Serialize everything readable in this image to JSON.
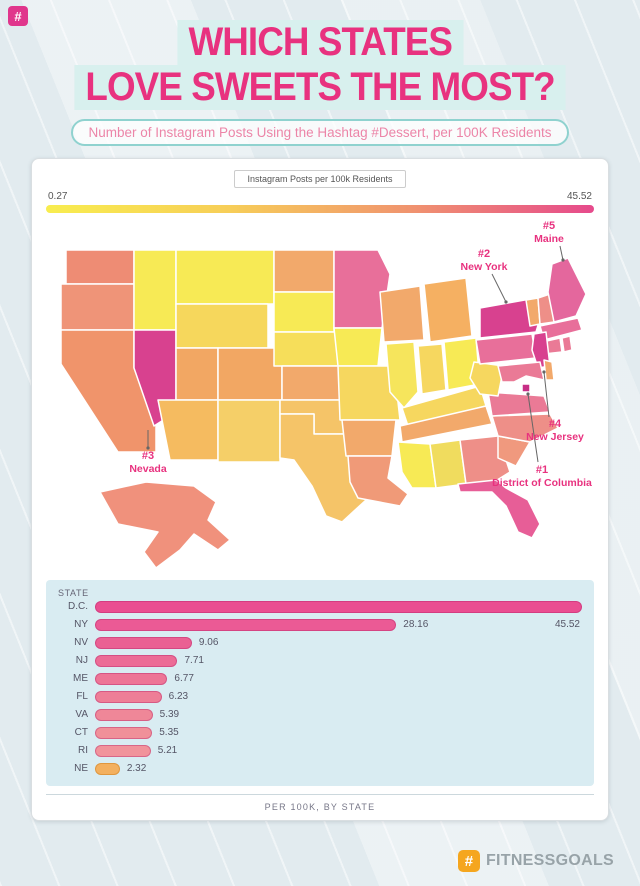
{
  "header": {
    "title_line1": "WHICH STATES",
    "title_line2": "LOVE SWEETS THE MOST?",
    "subtitle": "Number of Instagram Posts Using the Hashtag #Dessert, per 100K Residents",
    "title_color": "#E8327F",
    "highlight_color": "#D8F0EE"
  },
  "legend": {
    "title": "Instagram Posts per 100k Residents",
    "min_label": "0.27",
    "max_label": "45.52",
    "gradient_stops": [
      "#F8ED4F",
      "#F7CE58",
      "#F0936F",
      "#E64A8C"
    ]
  },
  "map": {
    "annotations": [
      {
        "rank": "#1",
        "name": "District of Columbia",
        "state_id": "DC"
      },
      {
        "rank": "#2",
        "name": "New York",
        "state_id": "NY"
      },
      {
        "rank": "#3",
        "name": "Nevada",
        "state_id": "NV"
      },
      {
        "rank": "#4",
        "name": "New Jersey",
        "state_id": "NJ"
      },
      {
        "rank": "#5",
        "name": "Maine",
        "state_id": "ME"
      }
    ],
    "state_fills": {
      "WA": "#EE8C74",
      "OR": "#EF9478",
      "CA": "#F0946B",
      "NV": "#D8418F",
      "ID": "#F7EA55",
      "MT": "#F7EA55",
      "WY": "#F6D75C",
      "UT": "#F2A763",
      "CO": "#F2A763",
      "AZ": "#F5BB60",
      "NM": "#F5CF68",
      "ND": "#F2A96B",
      "SD": "#F7EA55",
      "NE": "#F6DE5A",
      "KS": "#F2A96B",
      "OK": "#F5C468",
      "TX": "#F5C468",
      "MN": "#E86F9A",
      "IA": "#F7EA55",
      "MO": "#F6D75F",
      "AR": "#F2A96B",
      "LA": "#F09A78",
      "WI": "#F2A96B",
      "IL": "#F6E55C",
      "MI": "#F5B062",
      "IN": "#F6D75F",
      "OH": "#F7EA55",
      "KY": "#F6D75F",
      "TN": "#F2A96B",
      "MS": "#F7EA55",
      "AL": "#F0DC5E",
      "GA": "#EE8F88",
      "FL": "#E75E97",
      "SC": "#F0997E",
      "NC": "#EE8F88",
      "VA": "#EA7A96",
      "WV": "#F6D75F",
      "PA": "#E86F9A",
      "NY": "#D8418F",
      "LI": "#D8418F",
      "VT": "#F2A96B",
      "NH": "#EE8F88",
      "ME": "#E4679D",
      "MA": "#E86F9A",
      "CT": "#EA7A96",
      "RI": "#EA7A96",
      "NJ": "#D8418F",
      "DE": "#F2A96B",
      "MD": "#EA7A96",
      "DC": "#C72E86",
      "AK": "#F0917C"
    }
  },
  "chart_data": {
    "type": "bar",
    "orientation": "horizontal",
    "column_header": "STATE",
    "categories": [
      "D.C.",
      "NY",
      "NV",
      "NJ",
      "ME",
      "FL",
      "VA",
      "CT",
      "RI",
      "NE"
    ],
    "values": [
      45.52,
      28.16,
      9.06,
      7.71,
      6.77,
      6.23,
      5.39,
      5.35,
      5.21,
      2.32
    ],
    "bar_colors": [
      "#EA4E91",
      "#EB5A95",
      "#EA6093",
      "#EC6C96",
      "#ED7596",
      "#EE7E97",
      "#EF8798",
      "#F09099",
      "#F1939B",
      "#F3B05F"
    ],
    "xlim": [
      0,
      45.52
    ],
    "xlabel": "PER 100K, BY STATE",
    "legend_position": "none",
    "grid": false
  },
  "footer": {
    "brand": "FITNESSGOALS",
    "icon_glyph": "#",
    "icon_color": "#F5A61E",
    "mini_icon_color": "#E0368C"
  }
}
